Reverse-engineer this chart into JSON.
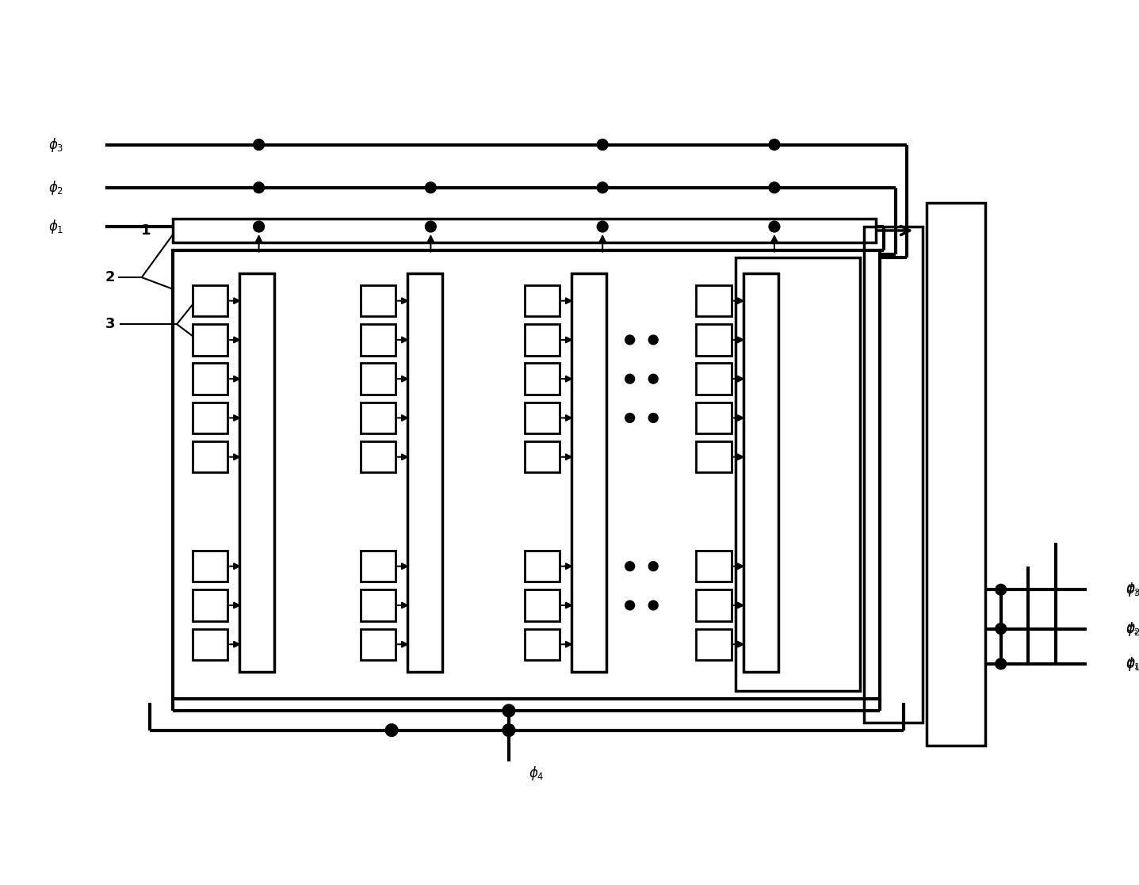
{
  "bg_color": "#ffffff",
  "lw": 2.0,
  "tlw": 3.0,
  "figsize": [
    14.37,
    11.17
  ],
  "dpi": 100,
  "phi_left_labels": [
    "φ₃",
    "φ₂",
    "φ₁"
  ],
  "phi_right_labels": [
    "φ₃",
    "φ₂",
    "φ₁"
  ],
  "phi_bottom_label": "φ₄",
  "label_1": "1",
  "label_2": "2",
  "label_3": "3"
}
